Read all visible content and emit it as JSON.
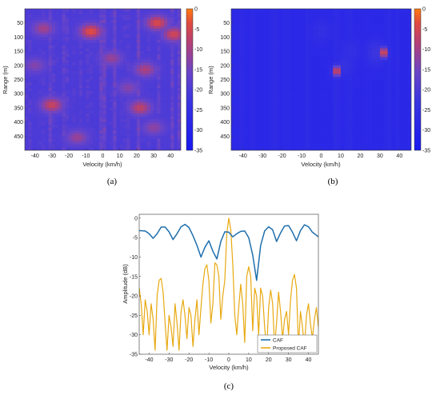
{
  "chart_data": [
    {
      "id": "a",
      "caption": "(a)",
      "type": "heatmap",
      "xlabel": "Velocity (km/h)",
      "ylabel": "Range (m)",
      "xlim": [
        -46,
        46
      ],
      "ylim": [
        0,
        500
      ],
      "xticks": [
        -40,
        -30,
        -20,
        -10,
        0,
        10,
        20,
        30,
        40
      ],
      "yticks": [
        50,
        100,
        150,
        200,
        250,
        300,
        350,
        400,
        450
      ],
      "colorbar": {
        "range": [
          -35,
          0
        ],
        "ticks": [
          0,
          -5,
          -10,
          -15,
          -20,
          -25,
          -30,
          -35
        ]
      },
      "background_db": -20,
      "hotspots": [
        {
          "v": -7,
          "r": 80,
          "db": -3
        },
        {
          "v": 32,
          "r": 50,
          "db": -4
        },
        {
          "v": 42,
          "r": 90,
          "db": -5
        },
        {
          "v": -30,
          "r": 340,
          "db": -6
        },
        {
          "v": 22,
          "r": 350,
          "db": -7
        },
        {
          "v": 25,
          "r": 215,
          "db": -9
        },
        {
          "v": -35,
          "r": 70,
          "db": -10
        },
        {
          "v": 5,
          "r": 175,
          "db": -11
        },
        {
          "v": -15,
          "r": 455,
          "db": -11
        },
        {
          "v": 30,
          "r": 420,
          "db": -12
        },
        {
          "v": -40,
          "r": 200,
          "db": -13
        },
        {
          "v": 15,
          "r": 280,
          "db": -13
        }
      ]
    },
    {
      "id": "b",
      "caption": "(b)",
      "type": "heatmap",
      "xlabel": "Velocity (km/h)",
      "ylabel": "Range (m)",
      "xlim": [
        -46,
        46
      ],
      "ylim": [
        0,
        500
      ],
      "xticks": [
        -40,
        -30,
        -20,
        -10,
        0,
        10,
        20,
        30,
        40
      ],
      "yticks": [
        50,
        100,
        150,
        200,
        250,
        300,
        350,
        400,
        450
      ],
      "colorbar": {
        "range": [
          -35,
          0
        ],
        "ticks": [
          0,
          -5,
          -10,
          -15,
          -20,
          -25,
          -30,
          -35
        ]
      },
      "background_db": -28,
      "hotspots": [
        {
          "v": 32,
          "r": 155,
          "db": 0
        },
        {
          "v": 8,
          "r": 220,
          "db": -1
        },
        {
          "v": 28,
          "r": 155,
          "db": -22
        },
        {
          "v": 12,
          "r": 200,
          "db": -24
        },
        {
          "v": 0,
          "r": 80,
          "db": -25
        },
        {
          "v": 15,
          "r": 150,
          "db": -25
        }
      ]
    },
    {
      "id": "c",
      "caption": "(c)",
      "type": "line",
      "xlabel": "Velocity (km/h)",
      "ylabel": "Amplitude (dB)",
      "xlim": [
        -45,
        45
      ],
      "ylim": [
        -35,
        1
      ],
      "xticks": [
        -40,
        -30,
        -20,
        -10,
        0,
        10,
        20,
        30,
        40
      ],
      "yticks": [
        0,
        -5,
        -10,
        -15,
        -20,
        -25,
        -30,
        -35
      ],
      "legend_position": "bottom-right",
      "series": [
        {
          "name": "CAF",
          "color": "#1f6fad",
          "x": [
            -45,
            -42,
            -40,
            -38,
            -36,
            -34,
            -32,
            -30,
            -28,
            -26,
            -24,
            -22,
            -20,
            -18,
            -16,
            -14,
            -12,
            -10,
            -8,
            -6,
            -4,
            -2,
            0,
            2,
            4,
            6,
            8,
            10,
            12,
            14,
            16,
            18,
            20,
            22,
            24,
            26,
            28,
            30,
            32,
            34,
            36,
            38,
            40,
            42,
            45
          ],
          "y": [
            -3.2,
            -3.3,
            -4.0,
            -5.2,
            -4.0,
            -2.3,
            -2.3,
            -3.5,
            -5.5,
            -4.0,
            -2.2,
            -1.6,
            -2.4,
            -4.5,
            -7.0,
            -10.0,
            -7.5,
            -5.8,
            -8.5,
            -10.5,
            -6.0,
            -3.5,
            -3.6,
            -4.8,
            -4.0,
            -3.4,
            -3.3,
            -5.0,
            -9.5,
            -16.0,
            -7.0,
            -3.3,
            -2.2,
            -3.0,
            -6.0,
            -3.8,
            -2.0,
            -1.9,
            -3.6,
            -5.8,
            -3.2,
            -1.7,
            -2.2,
            -3.6,
            -4.8
          ]
        },
        {
          "name": "Proposed CAF",
          "color": "#e8a911",
          "x": [
            -45,
            -44,
            -43,
            -42,
            -41,
            -40,
            -39,
            -38,
            -37,
            -36,
            -35,
            -34,
            -33,
            -32,
            -31,
            -30,
            -29,
            -28,
            -27,
            -26,
            -25,
            -24,
            -23,
            -22,
            -21,
            -20,
            -19,
            -18,
            -17,
            -16,
            -15,
            -14,
            -13,
            -12,
            -11,
            -10,
            -9,
            -8,
            -7,
            -6,
            -5,
            -4,
            -3,
            -2,
            -1,
            0,
            1,
            2,
            3,
            4,
            5,
            6,
            7,
            8,
            9,
            10,
            11,
            12,
            13,
            14,
            15,
            16,
            17,
            18,
            19,
            20,
            21,
            22,
            23,
            24,
            25,
            26,
            27,
            28,
            29,
            30,
            31,
            32,
            33,
            34,
            35,
            36,
            37,
            38,
            39,
            40,
            41,
            42,
            43,
            44,
            45
          ],
          "y": [
            -18,
            -22,
            -30,
            -21,
            -24,
            -30,
            -22,
            -26,
            -34,
            -20,
            -16,
            -15.5,
            -19,
            -27,
            -34,
            -25,
            -28,
            -33,
            -22,
            -27,
            -34,
            -24,
            -21,
            -25,
            -31,
            -23,
            -25,
            -33,
            -26,
            -21,
            -30,
            -23,
            -17,
            -13,
            -12,
            -16,
            -27,
            -22,
            -11.5,
            -12,
            -15,
            -26,
            -20,
            -16,
            -4,
            0,
            -3,
            -12,
            -25,
            -30,
            -23,
            -17,
            -22,
            -32,
            -15,
            -12.5,
            -15,
            -29,
            -18,
            -20,
            -30,
            -18,
            -20,
            -28,
            -34,
            -23,
            -18.5,
            -22,
            -33,
            -27,
            -19,
            -24,
            -31,
            -26,
            -24,
            -30,
            -21,
            -16,
            -14.5,
            -18,
            -33,
            -24,
            -28,
            -33,
            -25,
            -22,
            -27,
            -31,
            -26,
            -23,
            -28
          ]
        }
      ]
    }
  ]
}
